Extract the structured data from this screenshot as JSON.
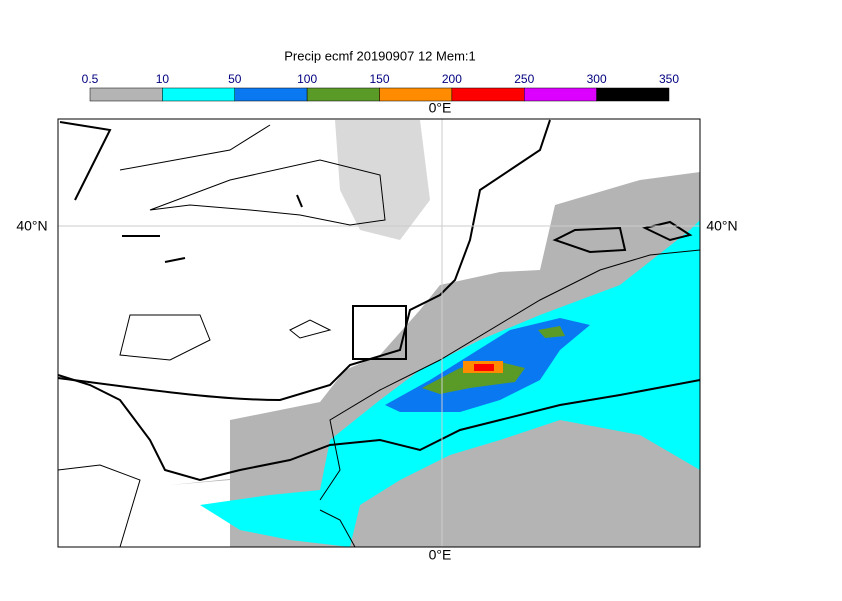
{
  "title": "Precip ecmf 20190907 12 Mem:1",
  "colorbar": {
    "bounds": [
      0.5,
      10,
      50,
      100,
      150,
      200,
      250,
      300,
      350
    ],
    "colors": [
      "#b4b4b4",
      "#00ffff",
      "#0a78f0",
      "#5a9b28",
      "#ff8c00",
      "#ff0000",
      "#dc00ff",
      "#000000"
    ]
  },
  "map": {
    "lon_label": "0°E",
    "lat_label": "40°N"
  }
}
